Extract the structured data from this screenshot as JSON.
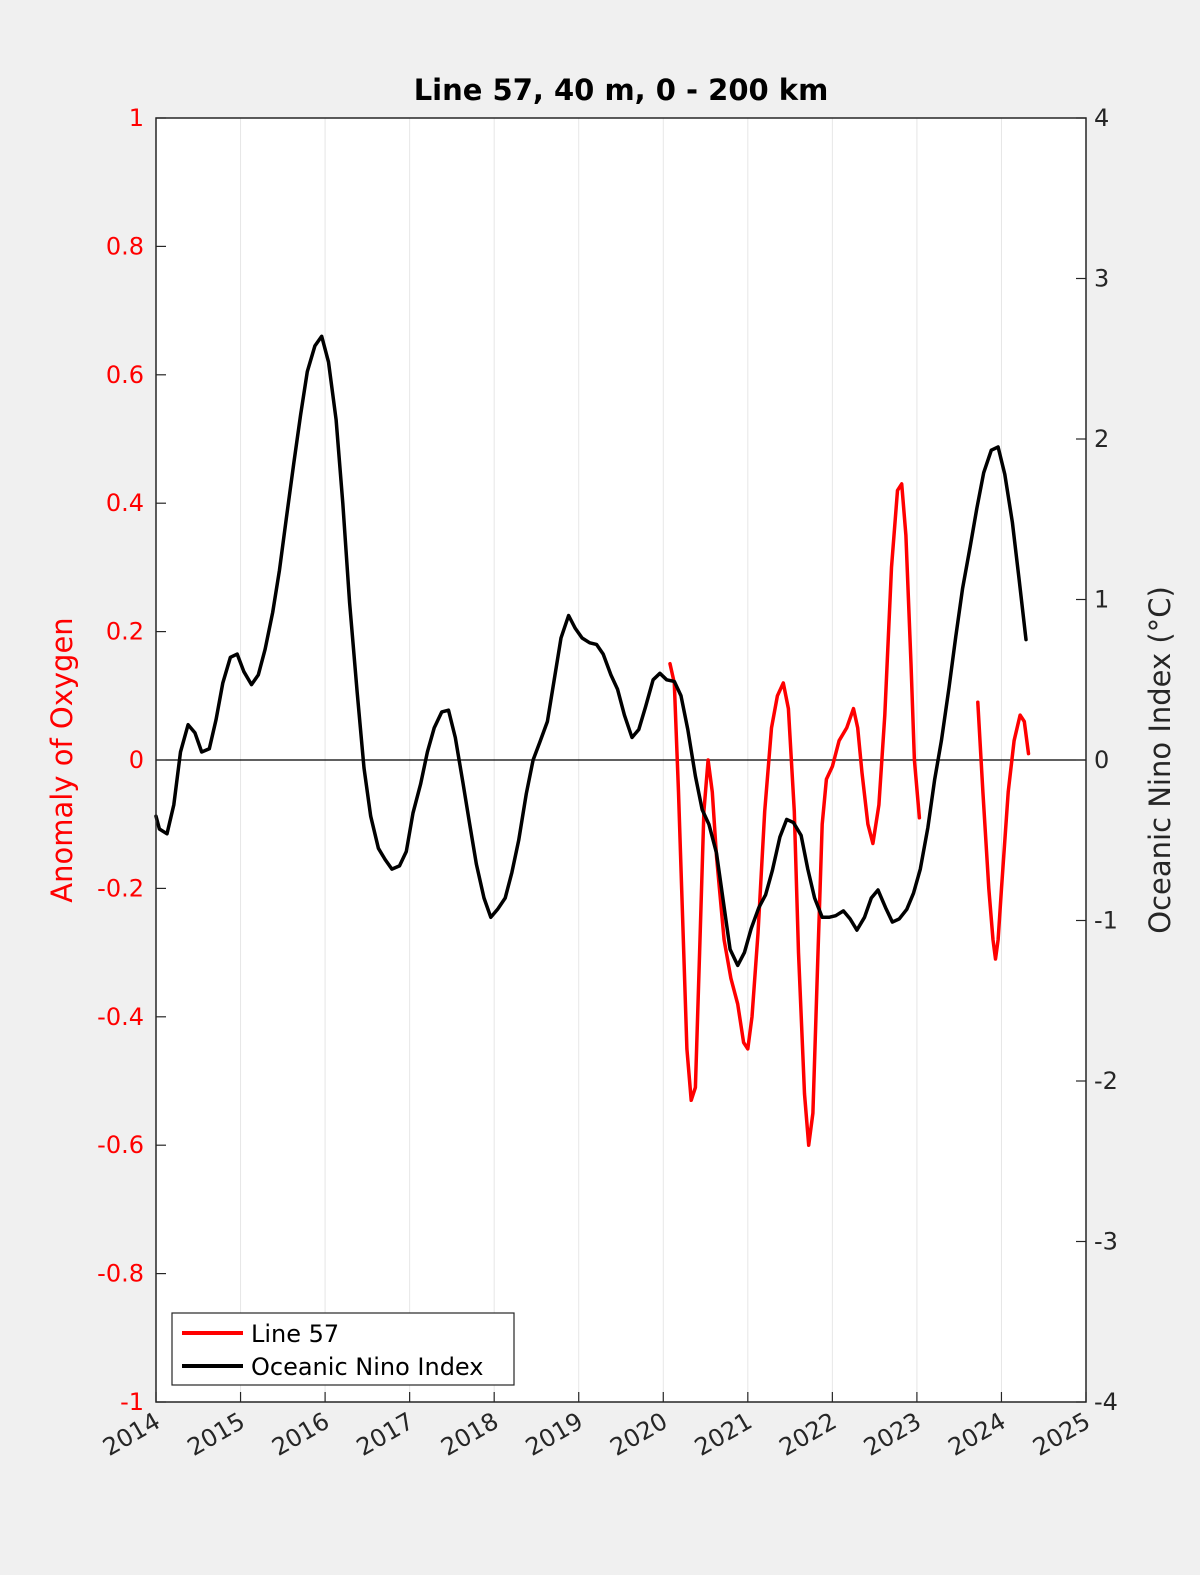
{
  "chart_data": {
    "type": "line",
    "title": "Line 57, 40 m, 0 - 200 km",
    "xlabel": "",
    "ylabel_left": "Anomaly of Oxygen",
    "ylabel_right": "Oceanic Nino Index (°C)",
    "xlim": [
      2014,
      2025
    ],
    "ylim_left": [
      -1,
      1
    ],
    "ylim_right": [
      -4,
      4
    ],
    "x_ticks": [
      "2014",
      "2015",
      "2016",
      "2017",
      "2018",
      "2019",
      "2020",
      "2021",
      "2022",
      "2023",
      "2024",
      "2025"
    ],
    "y_left_ticks": [
      "1",
      "0.8",
      "0.6",
      "0.4",
      "0.2",
      "0",
      "-0.2",
      "-0.4",
      "-0.6",
      "-0.8",
      "-1"
    ],
    "y_right_ticks": [
      "4",
      "3",
      "2",
      "1",
      "0",
      "-1",
      "-2",
      "-3",
      "-4"
    ],
    "grid": "vertical",
    "zero_line": true,
    "legend_position": "bottom-left",
    "colors": {
      "line57": "#ff0000",
      "oni": "#000000",
      "left_axis": "#ff0000",
      "right_axis": "#262626"
    },
    "series": [
      {
        "name": "Line 57",
        "axis": "left",
        "segments": [
          [
            [
              2020.08,
              0.15
            ],
            [
              2020.13,
              0.12
            ],
            [
              2020.18,
              -0.05
            ],
            [
              2020.23,
              -0.25
            ],
            [
              2020.28,
              -0.45
            ],
            [
              2020.33,
              -0.53
            ],
            [
              2020.38,
              -0.51
            ],
            [
              2020.43,
              -0.3
            ],
            [
              2020.48,
              -0.08
            ],
            [
              2020.53,
              0
            ],
            [
              2020.58,
              -0.05
            ],
            [
              2020.63,
              -0.15
            ],
            [
              2020.72,
              -0.28
            ],
            [
              2020.8,
              -0.34
            ],
            [
              2020.88,
              -0.38
            ],
            [
              2020.95,
              -0.44
            ],
            [
              2021.0,
              -0.45
            ],
            [
              2021.05,
              -0.4
            ],
            [
              2021.12,
              -0.27
            ],
            [
              2021.2,
              -0.08
            ],
            [
              2021.28,
              0.05
            ],
            [
              2021.35,
              0.1
            ],
            [
              2021.42,
              0.12
            ],
            [
              2021.48,
              0.08
            ],
            [
              2021.55,
              -0.08
            ],
            [
              2021.6,
              -0.3
            ],
            [
              2021.67,
              -0.52
            ],
            [
              2021.72,
              -0.6
            ],
            [
              2021.77,
              -0.55
            ],
            [
              2021.83,
              -0.3
            ],
            [
              2021.88,
              -0.1
            ],
            [
              2021.93,
              -0.03
            ],
            [
              2022.0,
              -0.01
            ],
            [
              2022.08,
              0.03
            ],
            [
              2022.17,
              0.05
            ],
            [
              2022.25,
              0.08
            ],
            [
              2022.3,
              0.05
            ],
            [
              2022.35,
              -0.02
            ],
            [
              2022.42,
              -0.1
            ],
            [
              2022.48,
              -0.13
            ],
            [
              2022.55,
              -0.07
            ],
            [
              2022.62,
              0.07
            ],
            [
              2022.7,
              0.3
            ],
            [
              2022.77,
              0.42
            ],
            [
              2022.82,
              0.43
            ],
            [
              2022.87,
              0.35
            ],
            [
              2022.93,
              0.15
            ],
            [
              2022.97,
              0
            ],
            [
              2023.03,
              -0.09
            ]
          ],
          [
            [
              2023.72,
              0.09
            ],
            [
              2023.78,
              -0.05
            ],
            [
              2023.85,
              -0.2
            ],
            [
              2023.9,
              -0.28
            ],
            [
              2023.93,
              -0.31
            ],
            [
              2023.96,
              -0.28
            ],
            [
              2024.0,
              -0.2
            ],
            [
              2024.08,
              -0.05
            ],
            [
              2024.15,
              0.03
            ],
            [
              2024.22,
              0.07
            ],
            [
              2024.27,
              0.06
            ],
            [
              2024.32,
              0.01
            ]
          ]
        ]
      },
      {
        "name": "Oceanic Nino Index",
        "axis": "right",
        "segments": [
          [
            [
              2014.0,
              -0.35
            ],
            [
              2014.04,
              -0.43
            ],
            [
              2014.13,
              -0.46
            ],
            [
              2014.21,
              -0.28
            ],
            [
              2014.29,
              0.05
            ],
            [
              2014.38,
              0.22
            ],
            [
              2014.46,
              0.17
            ],
            [
              2014.54,
              0.05
            ],
            [
              2014.63,
              0.07
            ],
            [
              2014.71,
              0.25
            ],
            [
              2014.79,
              0.48
            ],
            [
              2014.88,
              0.64
            ],
            [
              2014.96,
              0.66
            ],
            [
              2015.04,
              0.55
            ],
            [
              2015.13,
              0.47
            ],
            [
              2015.21,
              0.53
            ],
            [
              2015.29,
              0.69
            ],
            [
              2015.38,
              0.92
            ],
            [
              2015.46,
              1.18
            ],
            [
              2015.54,
              1.5
            ],
            [
              2015.63,
              1.85
            ],
            [
              2015.71,
              2.15
            ],
            [
              2015.79,
              2.42
            ],
            [
              2015.88,
              2.58
            ],
            [
              2015.96,
              2.64
            ],
            [
              2016.04,
              2.48
            ],
            [
              2016.13,
              2.12
            ],
            [
              2016.21,
              1.6
            ],
            [
              2016.29,
              0.98
            ],
            [
              2016.38,
              0.42
            ],
            [
              2016.46,
              -0.05
            ],
            [
              2016.54,
              -0.35
            ],
            [
              2016.63,
              -0.55
            ],
            [
              2016.71,
              -0.62
            ],
            [
              2016.79,
              -0.68
            ],
            [
              2016.88,
              -0.66
            ],
            [
              2016.96,
              -0.57
            ],
            [
              2017.04,
              -0.33
            ],
            [
              2017.13,
              -0.15
            ],
            [
              2017.21,
              0.05
            ],
            [
              2017.29,
              0.2
            ],
            [
              2017.38,
              0.3
            ],
            [
              2017.46,
              0.31
            ],
            [
              2017.54,
              0.14
            ],
            [
              2017.63,
              -0.14
            ],
            [
              2017.71,
              -0.4
            ],
            [
              2017.79,
              -0.65
            ],
            [
              2017.88,
              -0.86
            ],
            [
              2017.96,
              -0.98
            ],
            [
              2018.04,
              -0.93
            ],
            [
              2018.13,
              -0.86
            ],
            [
              2018.21,
              -0.7
            ],
            [
              2018.29,
              -0.5
            ],
            [
              2018.38,
              -0.21
            ],
            [
              2018.46,
              0.0
            ],
            [
              2018.54,
              0.11
            ],
            [
              2018.63,
              0.24
            ],
            [
              2018.71,
              0.5
            ],
            [
              2018.79,
              0.76
            ],
            [
              2018.88,
              0.9
            ],
            [
              2018.96,
              0.82
            ],
            [
              2019.04,
              0.76
            ],
            [
              2019.13,
              0.73
            ],
            [
              2019.21,
              0.72
            ],
            [
              2019.29,
              0.66
            ],
            [
              2019.38,
              0.53
            ],
            [
              2019.46,
              0.44
            ],
            [
              2019.54,
              0.28
            ],
            [
              2019.63,
              0.14
            ],
            [
              2019.71,
              0.19
            ],
            [
              2019.79,
              0.33
            ],
            [
              2019.88,
              0.5
            ],
            [
              2019.96,
              0.54
            ],
            [
              2020.04,
              0.5
            ],
            [
              2020.13,
              0.49
            ],
            [
              2020.21,
              0.4
            ],
            [
              2020.29,
              0.19
            ],
            [
              2020.38,
              -0.1
            ],
            [
              2020.46,
              -0.31
            ],
            [
              2020.54,
              -0.4
            ],
            [
              2020.63,
              -0.58
            ],
            [
              2020.71,
              -0.88
            ],
            [
              2020.79,
              -1.18
            ],
            [
              2020.88,
              -1.28
            ],
            [
              2020.96,
              -1.2
            ],
            [
              2021.04,
              -1.05
            ],
            [
              2021.13,
              -0.92
            ],
            [
              2021.21,
              -0.84
            ],
            [
              2021.29,
              -0.69
            ],
            [
              2021.38,
              -0.48
            ],
            [
              2021.46,
              -0.37
            ],
            [
              2021.54,
              -0.39
            ],
            [
              2021.63,
              -0.47
            ],
            [
              2021.71,
              -0.68
            ],
            [
              2021.79,
              -0.86
            ],
            [
              2021.88,
              -0.98
            ],
            [
              2021.96,
              -0.98
            ],
            [
              2022.04,
              -0.97
            ],
            [
              2022.13,
              -0.94
            ],
            [
              2022.21,
              -0.99
            ],
            [
              2022.29,
              -1.06
            ],
            [
              2022.38,
              -0.98
            ],
            [
              2022.46,
              -0.86
            ],
            [
              2022.54,
              -0.81
            ],
            [
              2022.63,
              -0.92
            ],
            [
              2022.71,
              -1.01
            ],
            [
              2022.79,
              -0.99
            ],
            [
              2022.88,
              -0.93
            ],
            [
              2022.96,
              -0.83
            ],
            [
              2023.04,
              -0.68
            ],
            [
              2023.13,
              -0.42
            ],
            [
              2023.21,
              -0.12
            ],
            [
              2023.29,
              0.12
            ],
            [
              2023.38,
              0.45
            ],
            [
              2023.46,
              0.77
            ],
            [
              2023.54,
              1.07
            ],
            [
              2023.63,
              1.33
            ],
            [
              2023.71,
              1.57
            ],
            [
              2023.79,
              1.79
            ],
            [
              2023.88,
              1.93
            ],
            [
              2023.96,
              1.95
            ],
            [
              2024.04,
              1.78
            ],
            [
              2024.13,
              1.48
            ],
            [
              2024.21,
              1.12
            ],
            [
              2024.29,
              0.75
            ]
          ]
        ]
      }
    ]
  }
}
